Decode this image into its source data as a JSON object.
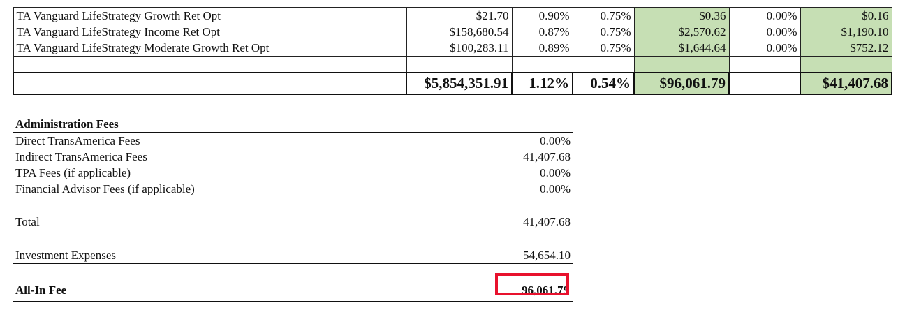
{
  "fund_table": {
    "rows": [
      {
        "name": "TA Vanguard LifeStrategy Growth Ret Opt",
        "assets": "$21.70",
        "expense_ratio": "0.90%",
        "rate": "0.75%",
        "inv_fee": "$0.36",
        "pct": "0.00%",
        "admin_fee": "$0.16"
      },
      {
        "name": "TA Vanguard LifeStrategy Income Ret Opt",
        "assets": "$158,680.54",
        "expense_ratio": "0.87%",
        "rate": "0.75%",
        "inv_fee": "$2,570.62",
        "pct": "0.00%",
        "admin_fee": "$1,190.10"
      },
      {
        "name": "TA Vanguard LifeStrategy Moderate Growth Ret Opt",
        "assets": "$100,283.11",
        "expense_ratio": "0.89%",
        "rate": "0.75%",
        "inv_fee": "$1,644.64",
        "pct": "0.00%",
        "admin_fee": "$752.12"
      }
    ],
    "totals": {
      "assets": "$5,854,351.91",
      "expense_ratio": "1.12%",
      "rate": "0.54%",
      "inv_fee": "$96,061.79",
      "admin_fee": "$41,407.68"
    }
  },
  "admin_fees": {
    "heading": "Administration Fees",
    "items": [
      {
        "label": "Direct TransAmerica Fees",
        "value": "0.00%"
      },
      {
        "label": "Indirect TransAmerica Fees",
        "value": "41,407.68"
      },
      {
        "label": "TPA Fees (if applicable)",
        "value": "0.00%"
      },
      {
        "label": "Financial Advisor Fees (if applicable)",
        "value": "0.00%"
      }
    ],
    "total_label": "Total",
    "total_value": "41,407.68",
    "investment_label": "Investment Expenses",
    "investment_value": "54,654.10",
    "all_in_label": "All-In Fee",
    "all_in_value": "96,061.79"
  },
  "colors": {
    "highlight": "#e8112d",
    "green_fill": "#c6dfb4"
  }
}
